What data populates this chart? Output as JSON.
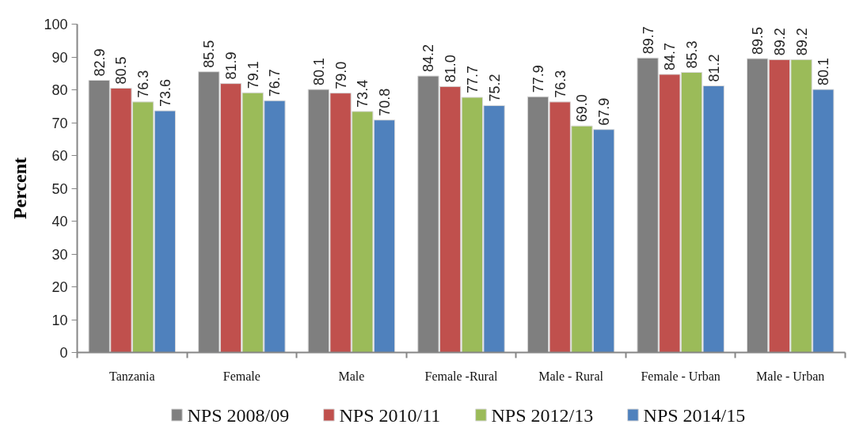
{
  "chart_data": {
    "type": "bar",
    "ylabel": "Percent",
    "categories": [
      "Tanzania",
      "Female",
      "Male",
      "Female -Rural",
      "Male - Rural",
      "Female - Urban",
      "Male - Urban"
    ],
    "series": [
      {
        "name": "NPS 2008/09",
        "color": "#7f7f7f",
        "values": [
          82.9,
          85.5,
          80.1,
          84.2,
          77.9,
          89.7,
          89.5
        ],
        "value_labels": [
          "82.9",
          "85.5",
          "80.1",
          "84.2",
          "77.9",
          "89.7",
          "89.5"
        ]
      },
      {
        "name": "NPS 2010/11",
        "color": "#c0504d",
        "values": [
          80.5,
          81.9,
          79.0,
          81.0,
          76.3,
          84.7,
          89.2
        ],
        "value_labels": [
          "80.5",
          "81.9",
          "79.0",
          "81.0",
          "76.3",
          "84.7",
          "89.2"
        ]
      },
      {
        "name": "NPS 2012/13",
        "color": "#9bbb59",
        "values": [
          76.3,
          79.1,
          73.4,
          77.7,
          69.0,
          85.3,
          89.2
        ],
        "value_labels": [
          "76.3",
          "79.1",
          "73.4",
          "77.7",
          "69.0",
          "85.3",
          "89.2"
        ]
      },
      {
        "name": "NPS 2014/15",
        "color": "#4f81bd",
        "values": [
          73.6,
          76.7,
          70.8,
          75.2,
          67.9,
          81.2,
          80.1
        ],
        "value_labels": [
          "73.6",
          "76.7",
          "70.8",
          "75.2",
          "67.9",
          "81.2",
          "80.1"
        ]
      }
    ],
    "ylim": [
      0,
      100
    ],
    "yticks": [
      0,
      10,
      20,
      30,
      40,
      50,
      60,
      70,
      80,
      90,
      100
    ],
    "grid": false,
    "legend": "bottom"
  }
}
